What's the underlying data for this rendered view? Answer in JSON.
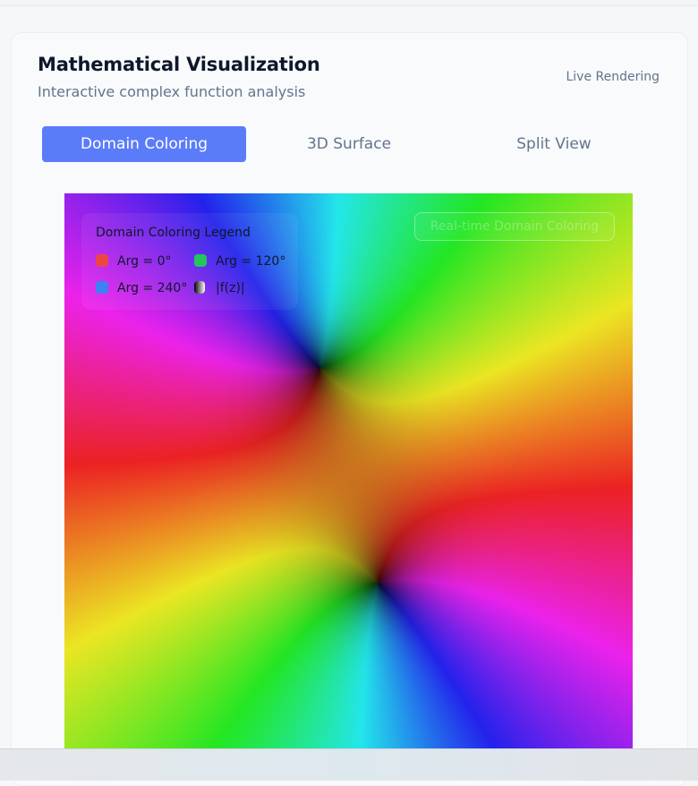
{
  "header": {
    "title": "Mathematical Visualization",
    "subtitle": "Interactive complex function analysis",
    "status": "Live Rendering"
  },
  "tabs": [
    {
      "label": "Domain Coloring",
      "active": true
    },
    {
      "label": "3D Surface",
      "active": false
    },
    {
      "label": "Split View",
      "active": false
    }
  ],
  "legend": {
    "title": "Domain Coloring Legend",
    "items": [
      {
        "label": "Arg = 0°",
        "color": "#ef4444"
      },
      {
        "label": "Arg = 120°",
        "color": "#22c55e"
      },
      {
        "label": "Arg = 240°",
        "color": "#3b82f6"
      },
      {
        "label": "|f(z)|",
        "icon": "magnitude-gradient-icon"
      }
    ]
  },
  "viz": {
    "badge": "Real-time Domain Coloring"
  },
  "colors": {
    "accent": "#5b7cf9",
    "title": "#0f172a",
    "muted": "#64748b"
  }
}
